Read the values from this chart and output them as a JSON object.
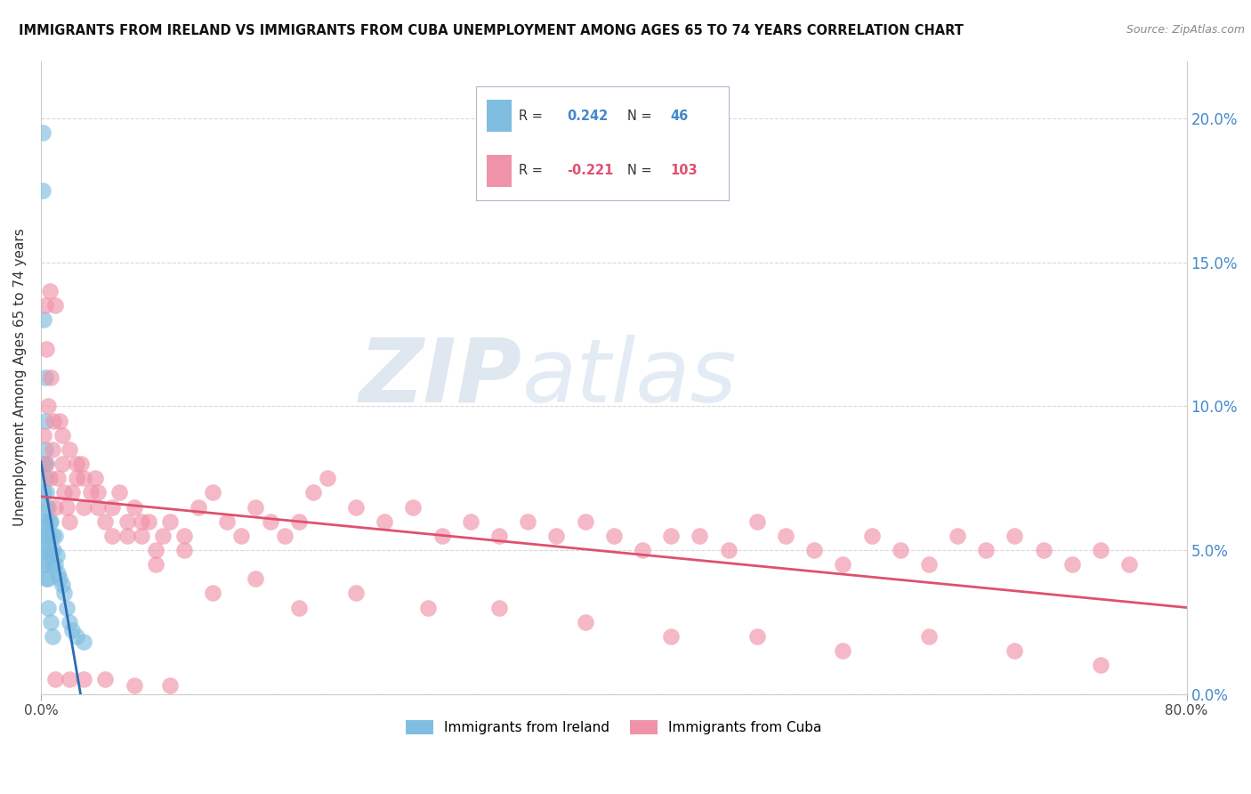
{
  "title": "IMMIGRANTS FROM IRELAND VS IMMIGRANTS FROM CUBA UNEMPLOYMENT AMONG AGES 65 TO 74 YEARS CORRELATION CHART",
  "source": "Source: ZipAtlas.com",
  "ylabel": "Unemployment Among Ages 65 to 74 years",
  "ireland_R": 0.242,
  "ireland_N": 46,
  "cuba_R": -0.221,
  "cuba_N": 103,
  "ireland_color": "#7fbee0",
  "cuba_color": "#f093a8",
  "ireland_line_color": "#2b6cb5",
  "cuba_line_color": "#e05070",
  "background_color": "#ffffff",
  "grid_color": "#d8d8d8",
  "watermark_zip": "ZIP",
  "watermark_atlas": "atlas",
  "xlim": [
    0.0,
    0.8
  ],
  "ylim": [
    0.0,
    0.22
  ],
  "yticks": [
    0.0,
    0.05,
    0.1,
    0.15,
    0.2
  ],
  "ytick_labels": [
    "0.0%",
    "5.0%",
    "10.0%",
    "15.0%",
    "20.0%"
  ],
  "ireland_x": [
    0.001,
    0.001,
    0.001,
    0.001,
    0.002,
    0.002,
    0.002,
    0.002,
    0.003,
    0.003,
    0.003,
    0.003,
    0.003,
    0.004,
    0.004,
    0.004,
    0.004,
    0.005,
    0.005,
    0.005,
    0.006,
    0.006,
    0.007,
    0.007,
    0.008,
    0.008,
    0.009,
    0.01,
    0.01,
    0.011,
    0.012,
    0.013,
    0.015,
    0.016,
    0.018,
    0.02,
    0.022,
    0.025,
    0.03,
    0.002,
    0.003,
    0.003,
    0.004,
    0.005,
    0.007,
    0.008
  ],
  "ireland_y": [
    0.195,
    0.175,
    0.055,
    0.045,
    0.08,
    0.07,
    0.06,
    0.05,
    0.085,
    0.075,
    0.065,
    0.055,
    0.045,
    0.07,
    0.06,
    0.05,
    0.04,
    0.065,
    0.055,
    0.04,
    0.06,
    0.05,
    0.06,
    0.048,
    0.055,
    0.045,
    0.05,
    0.055,
    0.045,
    0.048,
    0.042,
    0.04,
    0.038,
    0.035,
    0.03,
    0.025,
    0.022,
    0.02,
    0.018,
    0.13,
    0.11,
    0.095,
    0.08,
    0.03,
    0.025,
    0.02
  ],
  "cuba_x": [
    0.002,
    0.003,
    0.004,
    0.005,
    0.006,
    0.007,
    0.008,
    0.009,
    0.01,
    0.012,
    0.013,
    0.015,
    0.016,
    0.018,
    0.02,
    0.022,
    0.025,
    0.028,
    0.03,
    0.035,
    0.038,
    0.04,
    0.045,
    0.05,
    0.055,
    0.06,
    0.065,
    0.07,
    0.075,
    0.08,
    0.085,
    0.09,
    0.1,
    0.11,
    0.12,
    0.13,
    0.14,
    0.15,
    0.16,
    0.17,
    0.18,
    0.19,
    0.2,
    0.22,
    0.24,
    0.26,
    0.28,
    0.3,
    0.32,
    0.34,
    0.36,
    0.38,
    0.4,
    0.42,
    0.44,
    0.46,
    0.48,
    0.5,
    0.52,
    0.54,
    0.56,
    0.58,
    0.6,
    0.62,
    0.64,
    0.66,
    0.68,
    0.7,
    0.72,
    0.74,
    0.76,
    0.003,
    0.006,
    0.01,
    0.015,
    0.02,
    0.025,
    0.03,
    0.04,
    0.05,
    0.06,
    0.07,
    0.08,
    0.1,
    0.12,
    0.15,
    0.18,
    0.22,
    0.27,
    0.32,
    0.38,
    0.44,
    0.5,
    0.56,
    0.62,
    0.68,
    0.74,
    0.01,
    0.02,
    0.03,
    0.045,
    0.065,
    0.09
  ],
  "cuba_y": [
    0.09,
    0.08,
    0.12,
    0.1,
    0.075,
    0.11,
    0.085,
    0.095,
    0.065,
    0.075,
    0.095,
    0.08,
    0.07,
    0.065,
    0.06,
    0.07,
    0.075,
    0.08,
    0.065,
    0.07,
    0.075,
    0.065,
    0.06,
    0.055,
    0.07,
    0.06,
    0.065,
    0.055,
    0.06,
    0.05,
    0.055,
    0.06,
    0.055,
    0.065,
    0.07,
    0.06,
    0.055,
    0.065,
    0.06,
    0.055,
    0.06,
    0.07,
    0.075,
    0.065,
    0.06,
    0.065,
    0.055,
    0.06,
    0.055,
    0.06,
    0.055,
    0.06,
    0.055,
    0.05,
    0.055,
    0.055,
    0.05,
    0.06,
    0.055,
    0.05,
    0.045,
    0.055,
    0.05,
    0.045,
    0.055,
    0.05,
    0.055,
    0.05,
    0.045,
    0.05,
    0.045,
    0.135,
    0.14,
    0.135,
    0.09,
    0.085,
    0.08,
    0.075,
    0.07,
    0.065,
    0.055,
    0.06,
    0.045,
    0.05,
    0.035,
    0.04,
    0.03,
    0.035,
    0.03,
    0.03,
    0.025,
    0.02,
    0.02,
    0.015,
    0.02,
    0.015,
    0.01,
    0.005,
    0.005,
    0.005,
    0.005,
    0.003,
    0.003
  ]
}
